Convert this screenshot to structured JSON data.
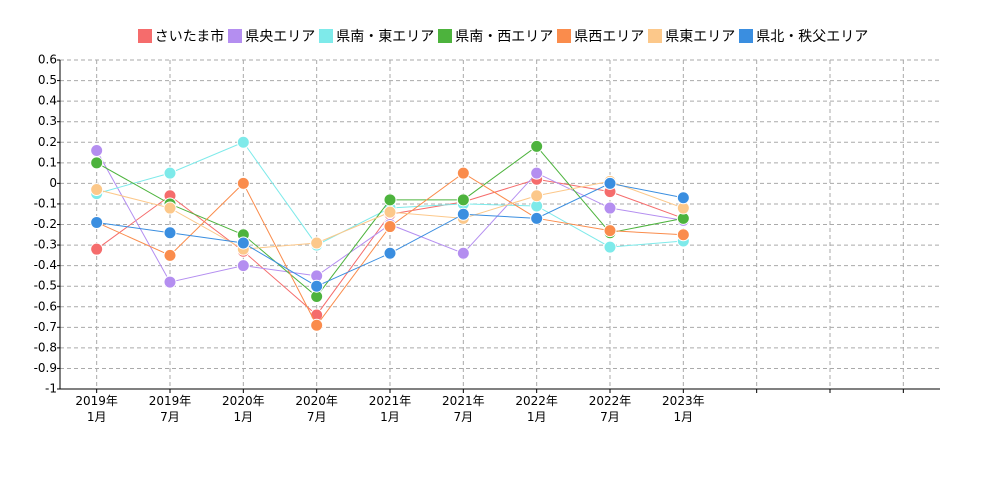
{
  "chart_data": {
    "type": "line",
    "categories": [
      "2019年\n1月",
      "2019年\n7月",
      "2020年\n1月",
      "2020年\n7月",
      "2021年\n1月",
      "2021年\n7月",
      "2022年\n1月",
      "2022年\n7月",
      "2023年\n1月",
      null,
      null,
      null
    ],
    "series": [
      {
        "name": "さいたま市",
        "color": "#f56c6c",
        "values": [
          -0.32,
          -0.06,
          -0.33,
          -0.64,
          -0.15,
          -0.09,
          0.02,
          -0.04,
          -0.17,
          null,
          null,
          null
        ]
      },
      {
        "name": "県央エリア",
        "color": "#b48ef0",
        "values": [
          0.16,
          -0.48,
          -0.4,
          -0.45,
          -0.2,
          -0.34,
          0.05,
          -0.12,
          -0.18,
          null,
          null,
          null
        ]
      },
      {
        "name": "県南・東エリア",
        "color": "#7eeaea",
        "values": [
          -0.05,
          0.05,
          0.2,
          -0.3,
          -0.12,
          -0.1,
          -0.11,
          -0.31,
          -0.28,
          null,
          null,
          null
        ]
      },
      {
        "name": "県南・西エリア",
        "color": "#4db33d",
        "values": [
          0.1,
          -0.1,
          -0.25,
          -0.55,
          -0.08,
          -0.08,
          0.18,
          -0.24,
          -0.17,
          null,
          null,
          null
        ]
      },
      {
        "name": "県西エリア",
        "color": "#fa8c4c",
        "values": [
          -0.19,
          -0.35,
          0,
          -0.69,
          -0.21,
          0.05,
          -0.17,
          -0.23,
          -0.25,
          null,
          null,
          null
        ]
      },
      {
        "name": "県東エリア",
        "color": "#fcc88a",
        "values": [
          -0.03,
          -0.12,
          -0.32,
          -0.29,
          -0.14,
          -0.17,
          -0.06,
          0.01,
          -0.12,
          null,
          null,
          null
        ]
      },
      {
        "name": "県北・秩父エリア",
        "color": "#3a8ee0",
        "values": [
          -0.19,
          -0.24,
          -0.29,
          -0.5,
          -0.34,
          -0.15,
          -0.17,
          0,
          -0.07,
          null,
          null,
          null
        ]
      }
    ],
    "ylim": [
      -1,
      0.6
    ],
    "yticks": [
      0.6,
      0.5,
      0.4,
      0.3,
      0.2,
      0.1,
      0,
      -0.1,
      -0.2,
      -0.3,
      -0.4,
      -0.5,
      -0.6,
      -0.7,
      -0.8,
      -0.9,
      -1
    ],
    "grid": true
  }
}
